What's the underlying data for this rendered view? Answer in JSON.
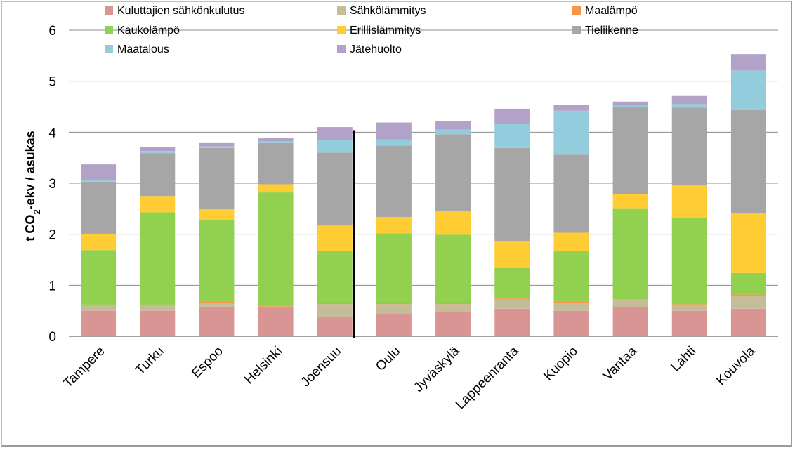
{
  "chart_data": {
    "type": "bar",
    "stacked": true,
    "ylabel": {
      "prefix": "t CO",
      "sub": "2",
      "suffix": "-ekv / asukas"
    },
    "ylim": [
      0,
      6
    ],
    "yticks": [
      "0",
      "1",
      "2",
      "3",
      "4",
      "5",
      "6"
    ],
    "grid": true,
    "legend_position": "top",
    "categories": [
      "Tampere",
      "Turku",
      "Espoo",
      "Helsinki",
      "Joensuu",
      "Oulu",
      "Jyväskylä",
      "Lappeenranta",
      "Kuopio",
      "Vantaa",
      "Lahti",
      "Kouvola"
    ],
    "series": [
      {
        "name": "Kuluttajien sähkönkulutus",
        "color": "#d99594",
        "values": [
          0.5,
          0.5,
          0.58,
          0.58,
          0.38,
          0.44,
          0.48,
          0.54,
          0.5,
          0.57,
          0.5,
          0.54
        ]
      },
      {
        "name": "Sähkölämmitys",
        "color": "#c4bd97",
        "values": [
          0.1,
          0.1,
          0.08,
          0.0,
          0.25,
          0.19,
          0.15,
          0.18,
          0.16,
          0.13,
          0.11,
          0.25
        ]
      },
      {
        "name": "Maalämpö",
        "color": "#f79646",
        "values": [
          0.02,
          0.02,
          0.02,
          0.01,
          0.02,
          0.02,
          0.02,
          0.02,
          0.02,
          0.02,
          0.02,
          0.03
        ]
      },
      {
        "name": "Kaukolämpö",
        "color": "#92d050",
        "values": [
          1.07,
          1.81,
          1.6,
          2.23,
          1.02,
          1.37,
          1.34,
          0.6,
          0.99,
          1.79,
          1.7,
          0.42
        ]
      },
      {
        "name": "Erillislämmitys",
        "color": "#ffcc33",
        "values": [
          0.32,
          0.32,
          0.22,
          0.16,
          0.5,
          0.32,
          0.47,
          0.53,
          0.36,
          0.28,
          0.63,
          1.18
        ]
      },
      {
        "name": "Tieliikenne",
        "color": "#a6a6a6",
        "values": [
          1.02,
          0.84,
          1.19,
          0.82,
          1.43,
          1.4,
          1.5,
          1.82,
          1.53,
          1.7,
          1.52,
          2.02
        ]
      },
      {
        "name": "Maatalous",
        "color": "#93cddd",
        "values": [
          0.03,
          0.04,
          0.03,
          0.02,
          0.25,
          0.12,
          0.09,
          0.48,
          0.86,
          0.03,
          0.07,
          0.77
        ]
      },
      {
        "name": "Jätehuolto",
        "color": "#b3a2c7",
        "values": [
          0.31,
          0.08,
          0.08,
          0.06,
          0.25,
          0.33,
          0.17,
          0.29,
          0.12,
          0.08,
          0.16,
          0.32
        ]
      }
    ]
  }
}
